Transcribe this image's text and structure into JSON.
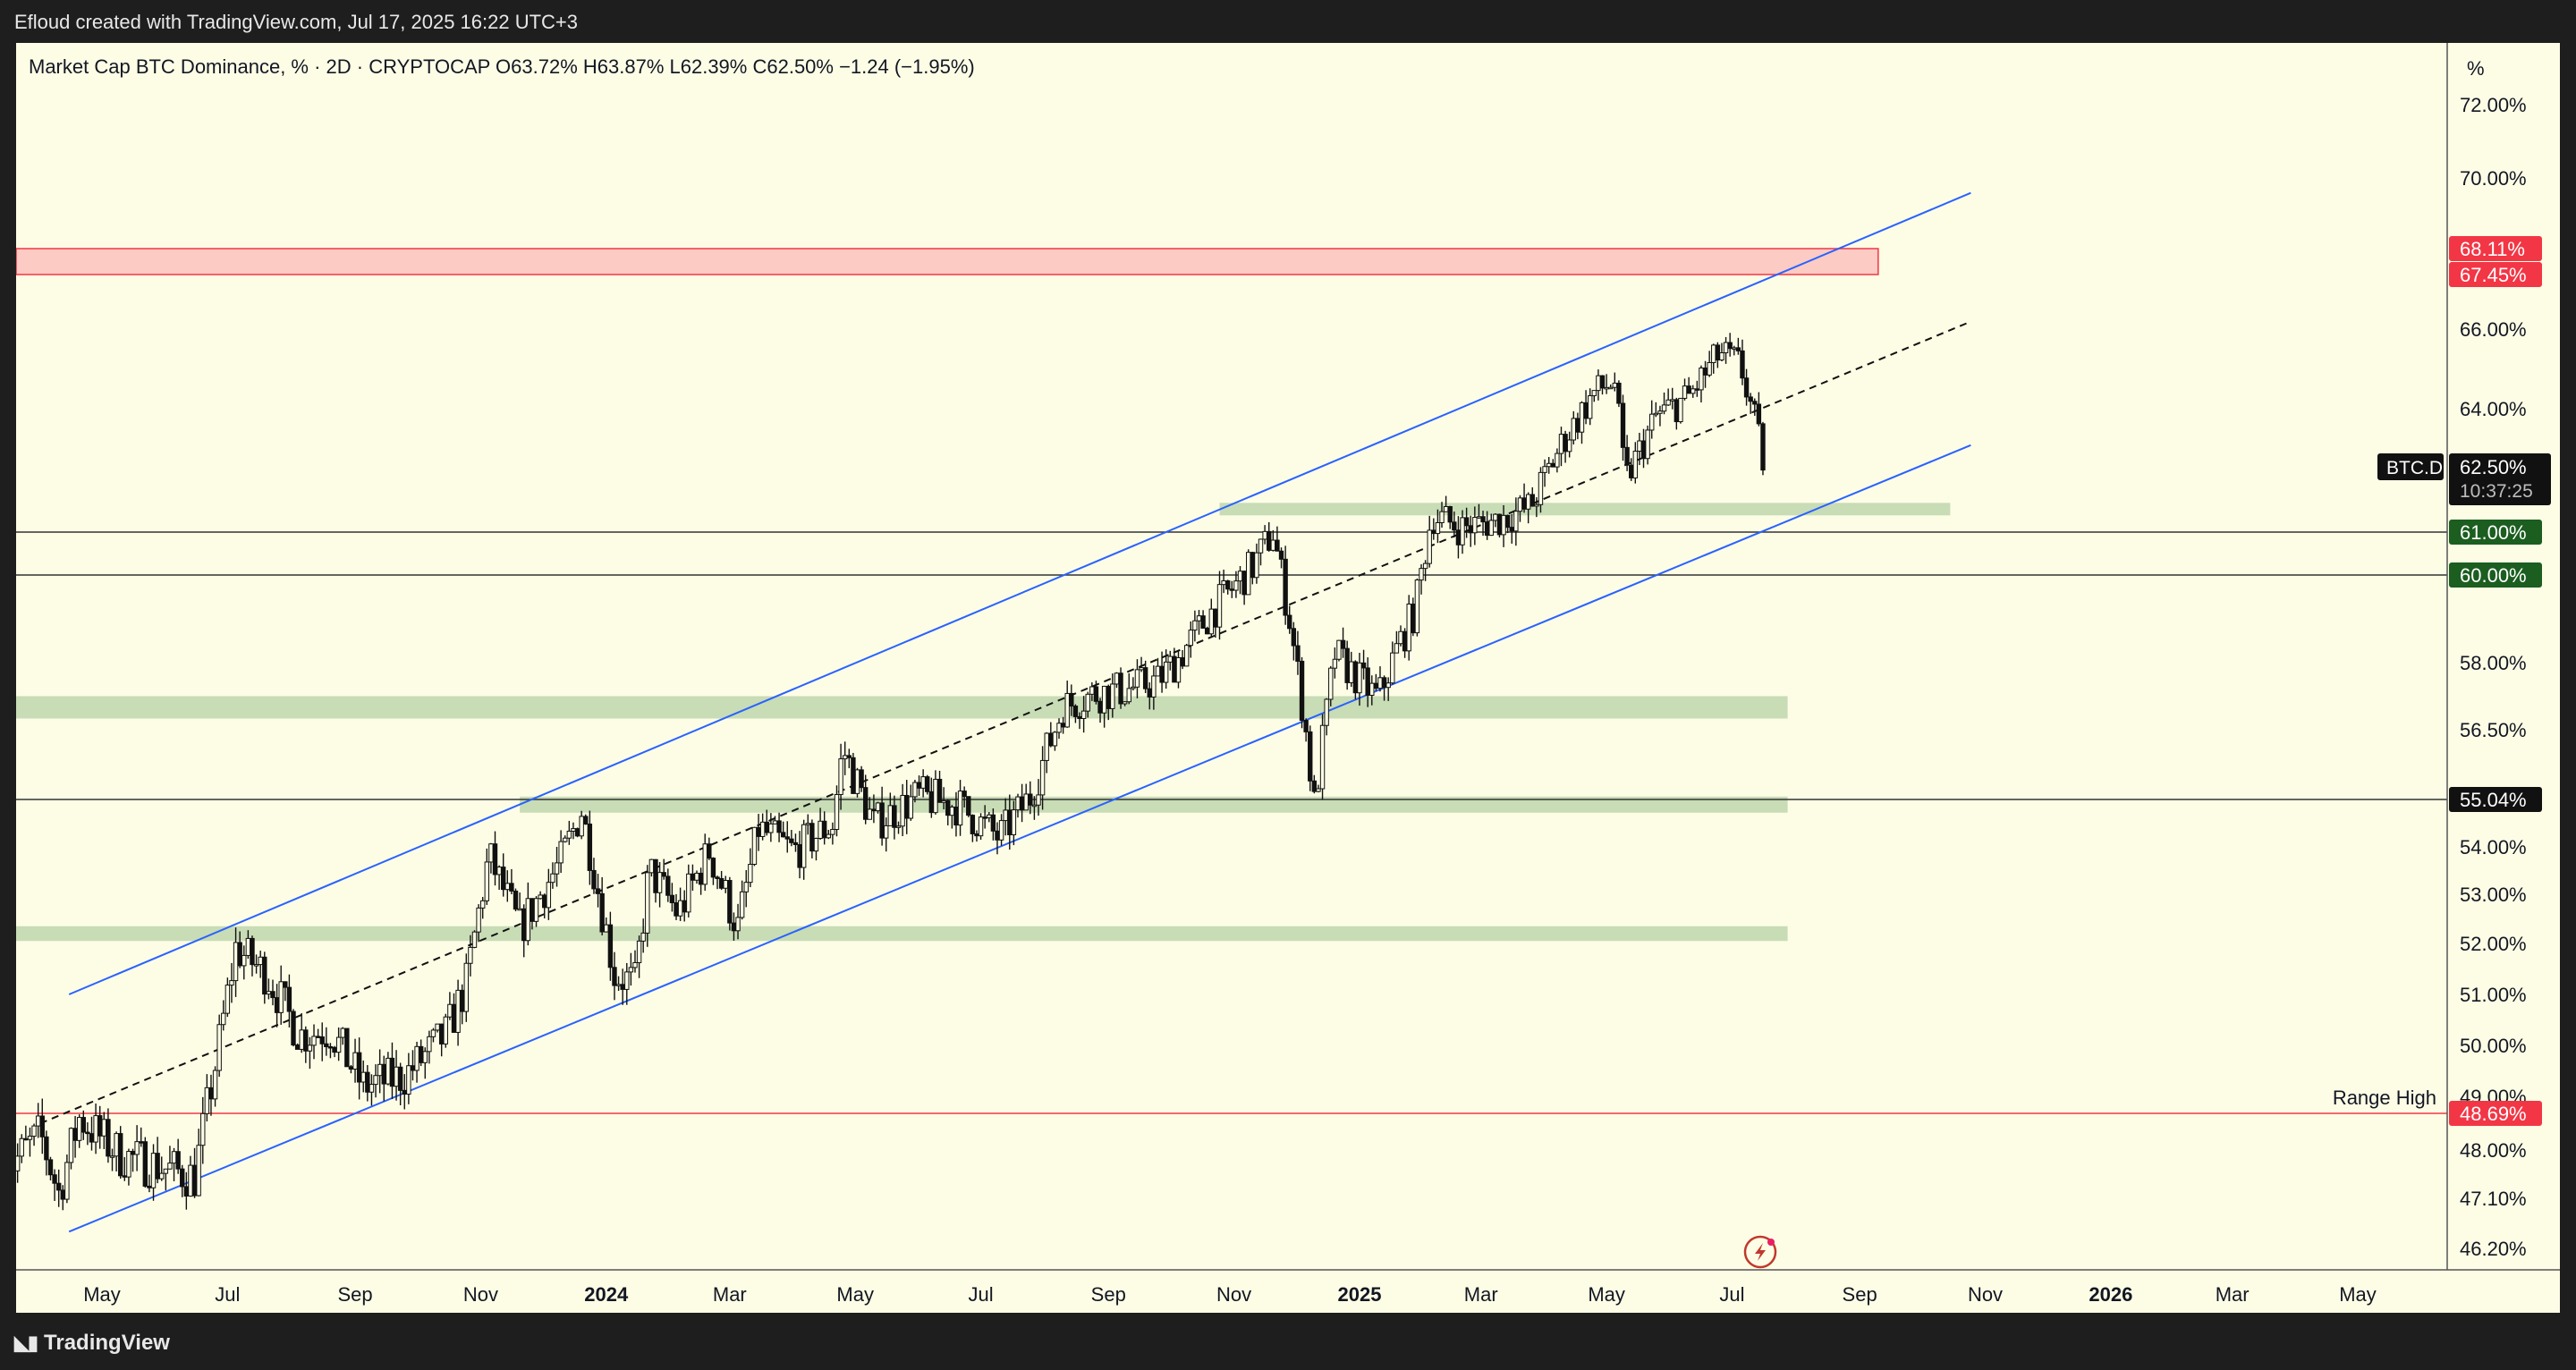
{
  "header": {
    "credit": "Efloud created with TradingView.com, Jul 17, 2025 16:22 UTC+3"
  },
  "legend": {
    "text": "Market Cap BTC Dominance, % · 2D · CRYPTOCAP   O63.72%   H63.87%   L62.39%   C62.50%   −1.24 (−1.95%)"
  },
  "footer": {
    "brand": "TradingView",
    "logo_icon": "tradingview-logo-icon"
  },
  "colors": {
    "panel": "#fdfde6",
    "channel": "#2962ff",
    "zone_green": "#c8dcb6",
    "zone_red": "#fccbc4",
    "red_line": "#f23645",
    "label_green": "#1b5e20",
    "label_red": "#f23645"
  },
  "chart_data": {
    "type": "candlestick",
    "symbol": "BTC.D",
    "interval": "2D",
    "ohlc": {
      "open": 63.72,
      "high": 63.87,
      "low": 62.39,
      "close": 62.5,
      "change": -1.24,
      "change_pct": -1.95
    },
    "y_unit_label": "%",
    "y_ticks": [
      "72.00%",
      "70.00%",
      "66.00%",
      "64.00%",
      "58.00%",
      "56.50%",
      "54.00%",
      "53.00%",
      "52.00%",
      "51.00%",
      "50.00%",
      "49.00%",
      "48.00%",
      "47.10%",
      "46.20%"
    ],
    "y_tick_values": [
      72.0,
      70.0,
      66.0,
      64.0,
      58.0,
      56.5,
      54.0,
      53.0,
      52.0,
      51.0,
      50.0,
      49.0,
      48.0,
      47.1,
      46.2
    ],
    "x_ticks": [
      "May",
      "Jul",
      "Sep",
      "Nov",
      "2024",
      "Mar",
      "May",
      "Jul",
      "Sep",
      "Nov",
      "2025",
      "Mar",
      "May",
      "Jul",
      "Sep",
      "Nov",
      "2026",
      "Mar",
      "May"
    ],
    "x_tick_bold": [
      false,
      false,
      false,
      false,
      true,
      false,
      false,
      false,
      false,
      false,
      true,
      false,
      false,
      false,
      false,
      false,
      true,
      false,
      false
    ],
    "x_tick_dates": [
      "2023-05-01",
      "2023-07-01",
      "2023-09-01",
      "2023-11-01",
      "2024-01-01",
      "2024-03-01",
      "2024-05-01",
      "2024-07-01",
      "2024-09-01",
      "2024-11-01",
      "2025-01-01",
      "2025-03-01",
      "2025-05-01",
      "2025-07-01",
      "2025-09-01",
      "2025-11-01",
      "2026-01-01",
      "2026-03-01",
      "2026-05-01"
    ],
    "price_labels": [
      {
        "text": "68.11%",
        "value": 68.11,
        "style": "red"
      },
      {
        "text": "67.45%",
        "value": 67.45,
        "style": "red"
      },
      {
        "text": "61.00%",
        "value": 61.0,
        "style": "green"
      },
      {
        "text": "60.00%",
        "value": 60.0,
        "style": "green"
      },
      {
        "text": "55.04%",
        "value": 55.04,
        "style": "black"
      },
      {
        "text": "48.69%",
        "value": 48.69,
        "style": "red"
      }
    ],
    "current": {
      "symbol": "BTC.D",
      "value_text": "62.50%",
      "countdown": "10:37:25",
      "value": 62.5
    },
    "zones": [
      {
        "type": "resistance",
        "low": 67.45,
        "high": 68.11,
        "from": "2023-03-15",
        "to": "2025-09-10"
      },
      {
        "type": "support",
        "low": 61.4,
        "high": 61.7,
        "from": "2024-10-25",
        "to": "2025-10-15"
      },
      {
        "type": "support",
        "low": 56.75,
        "high": 57.25,
        "from": "2023-03-15",
        "to": "2025-07-28"
      },
      {
        "type": "support",
        "low": 54.75,
        "high": 55.1,
        "from": "2023-11-20",
        "to": "2025-07-28"
      },
      {
        "type": "support",
        "low": 52.05,
        "high": 52.35,
        "from": "2023-03-15",
        "to": "2025-07-28"
      }
    ],
    "horizontal_lines": [
      {
        "value": 61.0,
        "color": "black"
      },
      {
        "value": 60.0,
        "color": "black"
      },
      {
        "value": 55.04,
        "color": "black"
      },
      {
        "value": 48.69,
        "color": "red",
        "label": "Range High"
      }
    ],
    "channel": {
      "upper": [
        {
          "date": "2023-04-15",
          "value": 51.0
        },
        {
          "date": "2025-10-25",
          "value": 69.6
        }
      ],
      "middle": [
        {
          "date": "2023-04-01",
          "value": 48.5
        },
        {
          "date": "2025-10-25",
          "value": 66.2
        }
      ],
      "lower": [
        {
          "date": "2023-04-15",
          "value": 46.5
        },
        {
          "date": "2025-10-25",
          "value": 63.1
        }
      ]
    },
    "price_path": [
      [
        "2023-03-15",
        47.6
      ],
      [
        "2023-04-01",
        48.3
      ],
      [
        "2023-04-10",
        47.2
      ],
      [
        "2023-04-20",
        48.6
      ],
      [
        "2023-05-10",
        47.9
      ],
      [
        "2023-06-15",
        47.5
      ],
      [
        "2023-06-25",
        49.6
      ],
      [
        "2023-07-05",
        51.9
      ],
      [
        "2023-07-20",
        51.4
      ],
      [
        "2023-08-05",
        50.2
      ],
      [
        "2023-08-20",
        50.3
      ],
      [
        "2023-09-05",
        49.2
      ],
      [
        "2023-09-25",
        49.4
      ],
      [
        "2023-10-15",
        50.2
      ],
      [
        "2023-10-25",
        51.2
      ],
      [
        "2023-11-05",
        53.8
      ],
      [
        "2023-11-20",
        52.3
      ],
      [
        "2023-12-10",
        53.7
      ],
      [
        "2023-12-20",
        54.8
      ],
      [
        "2024-01-05",
        51.4
      ],
      [
        "2024-01-15",
        51.2
      ],
      [
        "2024-01-22",
        53.5
      ],
      [
        "2024-02-05",
        52.6
      ],
      [
        "2024-02-20",
        53.9
      ],
      [
        "2024-03-05",
        52.3
      ],
      [
        "2024-03-15",
        54.4
      ],
      [
        "2024-04-01",
        53.9
      ],
      [
        "2024-04-20",
        54.5
      ],
      [
        "2024-04-25",
        56.1
      ],
      [
        "2024-05-10",
        54.5
      ],
      [
        "2024-06-01",
        55.1
      ],
      [
        "2024-06-20",
        54.9
      ],
      [
        "2024-07-10",
        54.2
      ],
      [
        "2024-07-25",
        55.1
      ],
      [
        "2024-08-10",
        57.0
      ],
      [
        "2024-08-25",
        57.3
      ],
      [
        "2024-09-10",
        57.4
      ],
      [
        "2024-09-25",
        57.6
      ],
      [
        "2024-10-05",
        58.1
      ],
      [
        "2024-10-20",
        59.1
      ],
      [
        "2024-11-10",
        60.2
      ],
      [
        "2024-11-20",
        61.0
      ],
      [
        "2024-11-28",
        59.0
      ],
      [
        "2024-12-05",
        56.8
      ],
      [
        "2024-12-10",
        54.9
      ],
      [
        "2024-12-20",
        58.2
      ],
      [
        "2025-01-01",
        57.6
      ],
      [
        "2025-01-10",
        57.2
      ],
      [
        "2025-01-20",
        58.4
      ],
      [
        "2025-01-28",
        59.2
      ],
      [
        "2025-02-05",
        61.4
      ],
      [
        "2025-02-20",
        61.1
      ],
      [
        "2025-03-10",
        61.3
      ],
      [
        "2025-03-25",
        61.6
      ],
      [
        "2025-04-10",
        63.2
      ],
      [
        "2025-04-25",
        64.4
      ],
      [
        "2025-05-05",
        64.7
      ],
      [
        "2025-05-10",
        62.2
      ],
      [
        "2025-05-25",
        63.8
      ],
      [
        "2025-06-10",
        64.3
      ],
      [
        "2025-06-25",
        65.4
      ],
      [
        "2025-07-05",
        65.1
      ],
      [
        "2025-07-12",
        63.7
      ],
      [
        "2025-07-17",
        62.5
      ]
    ]
  }
}
